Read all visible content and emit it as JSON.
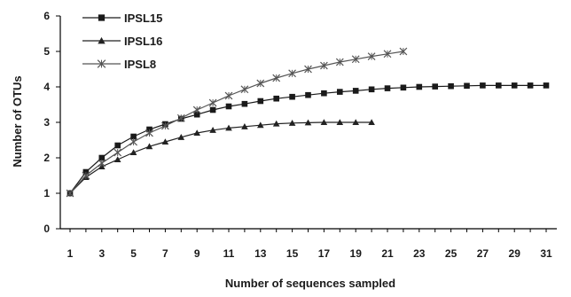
{
  "chart_data": {
    "type": "line",
    "title": "",
    "xlabel": "Number of sequences sampled",
    "ylabel": "Number of OTUs",
    "xlim": [
      1,
      32
    ],
    "ylim": [
      0,
      6
    ],
    "x_ticks": [
      1,
      3,
      5,
      7,
      9,
      11,
      13,
      15,
      17,
      19,
      21,
      23,
      25,
      27,
      29,
      31
    ],
    "y_ticks": [
      0,
      1,
      2,
      3,
      4,
      5,
      6
    ],
    "grid": false,
    "legend_position": "top-left",
    "series": [
      {
        "name": "IPSL15",
        "marker": "square",
        "x": [
          1,
          2,
          3,
          4,
          5,
          6,
          7,
          8,
          9,
          10,
          11,
          12,
          13,
          14,
          15,
          16,
          17,
          18,
          19,
          20,
          21,
          22,
          23,
          24,
          25,
          26,
          27,
          28,
          29,
          30,
          31
        ],
        "values": [
          1.0,
          1.6,
          2.0,
          2.35,
          2.6,
          2.8,
          2.95,
          3.1,
          3.22,
          3.35,
          3.45,
          3.52,
          3.6,
          3.67,
          3.72,
          3.77,
          3.82,
          3.86,
          3.89,
          3.93,
          3.96,
          3.98,
          4.0,
          4.01,
          4.02,
          4.03,
          4.04,
          4.04,
          4.04,
          4.04,
          4.04
        ]
      },
      {
        "name": "IPSL16",
        "marker": "triangle",
        "x": [
          1,
          2,
          3,
          4,
          5,
          6,
          7,
          8,
          9,
          10,
          11,
          12,
          13,
          14,
          15,
          16,
          17,
          18,
          19,
          20
        ],
        "values": [
          1.0,
          1.45,
          1.75,
          1.95,
          2.15,
          2.32,
          2.45,
          2.58,
          2.7,
          2.78,
          2.84,
          2.88,
          2.92,
          2.96,
          2.98,
          2.99,
          3.0,
          3.0,
          3.0,
          3.0
        ]
      },
      {
        "name": "IPSL8",
        "marker": "x",
        "x": [
          1,
          2,
          3,
          4,
          5,
          6,
          7,
          8,
          9,
          10,
          11,
          12,
          13,
          14,
          15,
          16,
          17,
          18,
          19,
          20,
          21,
          22
        ],
        "values": [
          1.0,
          1.5,
          1.85,
          2.15,
          2.45,
          2.7,
          2.9,
          3.12,
          3.35,
          3.55,
          3.75,
          3.93,
          4.1,
          4.25,
          4.38,
          4.5,
          4.6,
          4.7,
          4.78,
          4.86,
          4.93,
          5.0
        ]
      }
    ]
  }
}
